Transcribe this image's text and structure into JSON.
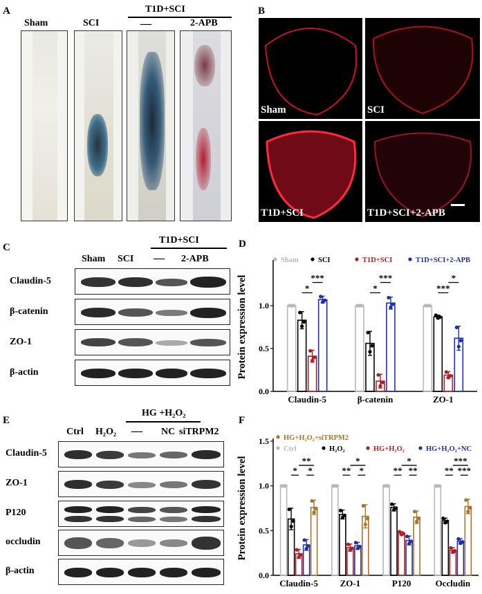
{
  "panelA": {
    "letter": "A",
    "group_label": "T1D+SCI",
    "columns": [
      "Sham",
      "SCI",
      "—",
      "2-APB"
    ]
  },
  "panelB": {
    "letter": "B",
    "labels": [
      "Sham",
      "SCI",
      "T1D+SCI",
      "T1D+SCI+2-APB"
    ]
  },
  "panelC": {
    "letter": "C",
    "group_label": "T1D+SCI",
    "columns": [
      "Sham",
      "SCI",
      "—",
      "2-APB"
    ],
    "rows": [
      "Claudin-5",
      "β-catenin",
      "ZO-1",
      "β-actin"
    ]
  },
  "panelE": {
    "letter": "E",
    "group_label": "HG +H₂O₂",
    "columns": [
      "Ctrl",
      "H₂O₂",
      "—",
      "NC",
      "siTRPM2"
    ],
    "rows": [
      "Claudin-5",
      "ZO-1",
      "P120",
      "occludin",
      "β-actin"
    ]
  },
  "chart_data": [
    {
      "panel": "D",
      "type": "bar",
      "ylabel": "Protein expression level",
      "ylim": [
        0,
        1.5
      ],
      "yticks": [
        "0.0",
        "0.5",
        "1.0"
      ],
      "categories": [
        "Claudin-5",
        "β-catenin",
        "ZO-1"
      ],
      "series": [
        {
          "name": "Sham",
          "color": "#b8b8b8",
          "values": [
            1.0,
            1.0,
            1.0
          ],
          "errors": [
            0,
            0,
            0
          ]
        },
        {
          "name": "SCI",
          "color": "#000000",
          "values": [
            0.83,
            0.56,
            0.87
          ],
          "errors": [
            0.1,
            0.14,
            0.02
          ]
        },
        {
          "name": "T1D+SCI",
          "color": "#b01e24",
          "values": [
            0.41,
            0.12,
            0.19
          ],
          "errors": [
            0.07,
            0.08,
            0.04
          ]
        },
        {
          "name": "T1D+SCI+2-APB",
          "color": "#1f2ea8",
          "values": [
            1.07,
            1.03,
            0.62
          ],
          "errors": [
            0.04,
            0.07,
            0.14
          ]
        }
      ],
      "significance": [
        {
          "category": 0,
          "from": 1,
          "to": 2,
          "label": "*"
        },
        {
          "category": 0,
          "from": 2,
          "to": 3,
          "label": "***"
        },
        {
          "category": 1,
          "from": 1,
          "to": 2,
          "label": "*"
        },
        {
          "category": 1,
          "from": 2,
          "to": 3,
          "label": "***"
        },
        {
          "category": 2,
          "from": 1,
          "to": 2,
          "label": "***"
        },
        {
          "category": 2,
          "from": 2,
          "to": 3,
          "label": "*"
        }
      ],
      "legend_placement": "top"
    },
    {
      "panel": "F",
      "type": "bar",
      "ylabel": "Protein expression level",
      "ylim": [
        0,
        1.5
      ],
      "yticks": [
        "0.0",
        "0.5",
        "1.0",
        "1.5"
      ],
      "categories": [
        "Claudin-5",
        "ZO-1",
        "P120",
        "Occludin"
      ],
      "series": [
        {
          "name": "Ctrl",
          "color": "#b8b8b8",
          "values": [
            1.0,
            1.0,
            1.0,
            1.0
          ],
          "errors": [
            0,
            0,
            0,
            0
          ]
        },
        {
          "name": "H₂O₂",
          "color": "#000000",
          "values": [
            0.63,
            0.68,
            0.76,
            0.61
          ],
          "errors": [
            0.12,
            0.05,
            0.04,
            0.03
          ]
        },
        {
          "name": "HG+H₂O₂",
          "color": "#b01e24",
          "values": [
            0.24,
            0.31,
            0.47,
            0.28
          ],
          "errors": [
            0.05,
            0.04,
            0.02,
            0.03
          ]
        },
        {
          "name": "HG+H₂O₂+NC",
          "color": "#1f2ea8",
          "values": [
            0.34,
            0.33,
            0.39,
            0.38
          ],
          "errors": [
            0.06,
            0.04,
            0.05,
            0.03
          ]
        },
        {
          "name": "HG+H₂O₂+siTRPM2",
          "color": "#a8742a",
          "values": [
            0.76,
            0.66,
            0.65,
            0.77
          ],
          "errors": [
            0.08,
            0.13,
            0.07,
            0.08
          ]
        }
      ],
      "significance": [
        {
          "category": 0,
          "from": 1,
          "to": 2,
          "label": "*"
        },
        {
          "category": 0,
          "from": 3,
          "to": 4,
          "label": "*"
        },
        {
          "category": 0,
          "from": 2,
          "to": 4,
          "label": "**"
        },
        {
          "category": 1,
          "from": 1,
          "to": 2,
          "label": "**"
        },
        {
          "category": 1,
          "from": 3,
          "to": 4,
          "label": "*"
        },
        {
          "category": 1,
          "from": 2,
          "to": 4,
          "label": "*"
        },
        {
          "category": 2,
          "from": 1,
          "to": 2,
          "label": "**"
        },
        {
          "category": 2,
          "from": 3,
          "to": 4,
          "label": "**"
        },
        {
          "category": 2,
          "from": 2,
          "to": 4,
          "label": "*"
        },
        {
          "category": 3,
          "from": 1,
          "to": 2,
          "label": "**"
        },
        {
          "category": 3,
          "from": 3,
          "to": 4,
          "label": "***"
        },
        {
          "category": 3,
          "from": 2,
          "to": 4,
          "label": "***"
        }
      ],
      "legend_placement": "top"
    }
  ]
}
